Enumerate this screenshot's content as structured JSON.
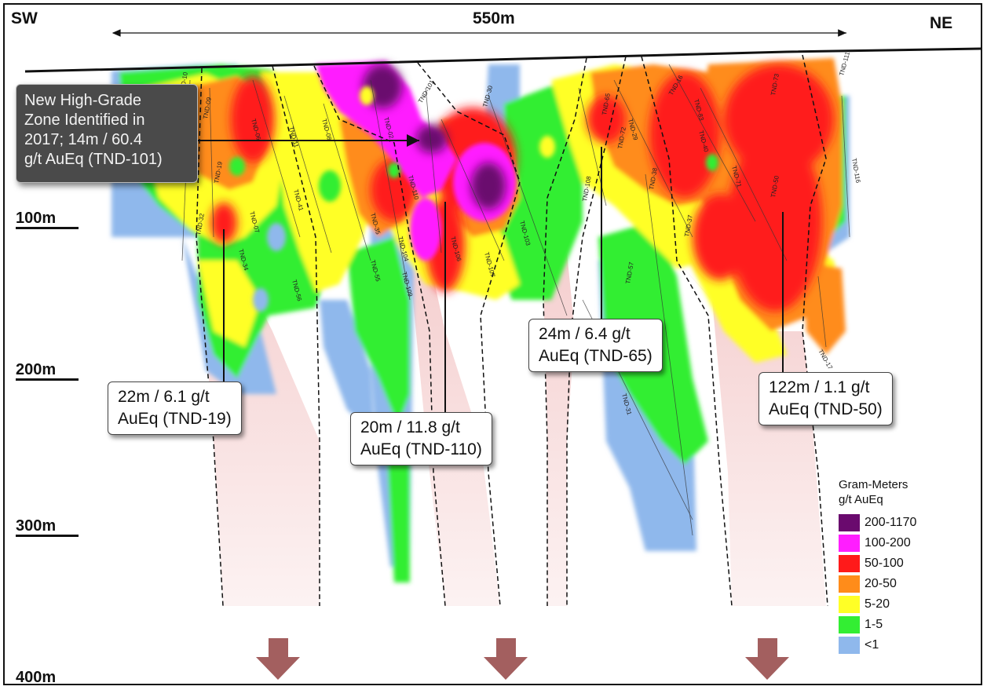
{
  "header": {
    "left_direction": "SW",
    "right_direction": "NE",
    "width_label": "550m"
  },
  "depth_scale": [
    "100m",
    "200m",
    "300m",
    "400m"
  ],
  "highlight_callout": {
    "lines": [
      "New High-Grade",
      "Zone Identified in",
      "2017; 14m / 60.4",
      "g/t AuEq (TND-101)"
    ]
  },
  "intercepts": [
    {
      "hole": "TND-19",
      "lines": [
        "22m / 6.1 g/t",
        "AuEq (TND-19)"
      ]
    },
    {
      "hole": "TND-110",
      "lines": [
        "20m / 11.8 g/t",
        "AuEq (TND-110)"
      ]
    },
    {
      "hole": "TND-65",
      "lines": [
        "24m / 6.4 g/t",
        "AuEq (TND-65)"
      ]
    },
    {
      "hole": "TND-50",
      "lines": [
        "122m / 1.1 g/t",
        "AuEq (TND-50)"
      ]
    }
  ],
  "legend": {
    "title_line1": "Gram-Meters",
    "title_line2": "g/t AuEq",
    "items": [
      {
        "label": "200-1170",
        "color": "#6a0a6e"
      },
      {
        "label": "100-200",
        "color": "#ff1eff"
      },
      {
        "label": "50-100",
        "color": "#ff1a1a"
      },
      {
        "label": "20-50",
        "color": "#ff8c1a"
      },
      {
        "label": "5-20",
        "color": "#ffff26"
      },
      {
        "label": "1-5",
        "color": "#33ee33"
      },
      {
        "label": "<1",
        "color": "#8fb8ec"
      }
    ]
  },
  "drill_holes": [
    "TND-10",
    "TND-09",
    "TND-06",
    "TND-11",
    "TND-08",
    "TND-41",
    "TND-19",
    "TND-07",
    "TND-32",
    "TND-34",
    "TND-56",
    "TND-35",
    "TND-55",
    "TND-104",
    "TND-109",
    "TND-02",
    "TND-101",
    "TND-110",
    "TND-106",
    "TND-107",
    "TND-103",
    "TND-30",
    "TND-65",
    "TND-72",
    "TND-29",
    "TND-108",
    "TND-57",
    "TND-31",
    "TND-16",
    "TND-83",
    "TND-40",
    "TND-38",
    "TND-71",
    "TND-37",
    "TND-73",
    "TND-50",
    "TND-111",
    "TND-116",
    "TND-17"
  ],
  "colors": {
    "grade_200_1170": "#6a0a6e",
    "grade_100_200": "#ff1eff",
    "grade_50_100": "#ff1a1a",
    "grade_20_50": "#ff8c1a",
    "grade_5_20": "#ffff26",
    "grade_1_5": "#33ee33",
    "grade_lt1": "#8fb8ec",
    "extension_zone": "#f7d6d6",
    "arrow": "#a35f5f"
  }
}
